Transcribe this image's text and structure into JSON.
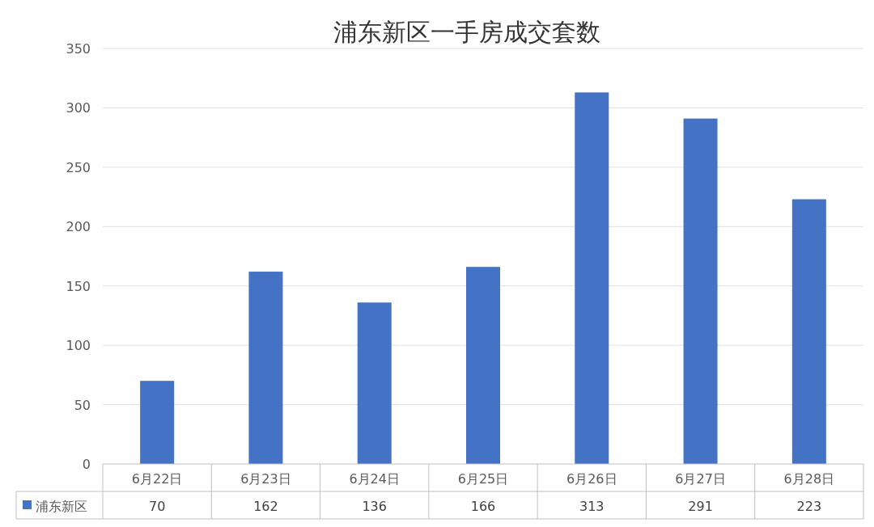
{
  "chart_data": {
    "type": "bar",
    "title": "浦东新区一手房成交套数",
    "categories": [
      "6月22日",
      "6月23日",
      "6月24日",
      "6月25日",
      "6月26日",
      "6月27日",
      "6月28日"
    ],
    "series": [
      {
        "name": "浦东新区",
        "color": "#4472c4",
        "values": [
          70,
          162,
          136,
          166,
          313,
          291,
          223
        ]
      }
    ],
    "ylim": [
      0,
      350
    ],
    "yticks": [
      0,
      50,
      100,
      150,
      200,
      250,
      300,
      350
    ],
    "grid": "y",
    "data_labels": true,
    "legend": "bottom"
  }
}
